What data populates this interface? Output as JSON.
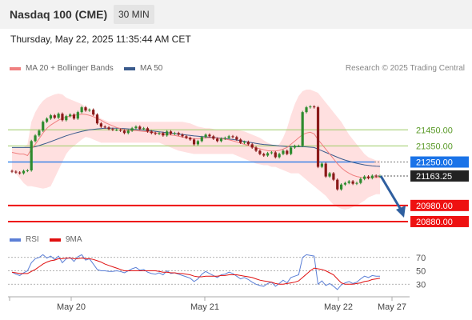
{
  "header": {
    "title": "Nasdaq 100 (CME)",
    "interval": "30 MIN",
    "datetime": "Thursday, May 22, 2025 11:35:44 AM CET"
  },
  "legend": {
    "ma20_label": "MA 20 + Bollinger Bands",
    "ma50_label": "MA 50",
    "rsi_label": "RSI",
    "ma9_label": "9MA",
    "copyright": "Research © 2025 Trading Central"
  },
  "colors": {
    "bullish": "#2e8b2e",
    "bearish": "#8b1a1a",
    "ma20": "#f08080",
    "ma50": "#3a5a8c",
    "band_fill": "#ffd6d6",
    "resistance": "#9ccc65",
    "pivot": "#1a73e8",
    "support": "#ee1111",
    "arrow": "#2f5f9f",
    "rsi": "#5b7fd6",
    "rsi_ma": "#e01010"
  },
  "levels": [
    {
      "value": 21450.0,
      "label": "21450.00",
      "type": "resistance"
    },
    {
      "value": 21350.0,
      "label": "21350.00",
      "type": "resistance"
    },
    {
      "value": 21250.0,
      "label": "21250.00",
      "type": "pivot"
    },
    {
      "value": 21163.25,
      "label": "21163.25",
      "type": "last"
    },
    {
      "value": 20980.0,
      "label": "20980.00",
      "type": "support"
    },
    {
      "value": 20880.0,
      "label": "20880.00",
      "type": "support"
    }
  ],
  "rsi_axis": {
    "ticks": [
      70,
      50,
      30
    ]
  },
  "x_axis": {
    "labels": [
      "May 20",
      "May 21",
      "May 22",
      "May 27"
    ]
  },
  "chart_data": [
    {
      "type": "candlestick",
      "title": "",
      "ylim": [
        20840,
        21700
      ],
      "overlays": [
        "MA 20 + Bollinger Bands",
        "MA 50"
      ],
      "close": [
        21190,
        21185,
        21180,
        21195,
        21198,
        21380,
        21415,
        21445,
        21500,
        21520,
        21540,
        21525,
        21550,
        21510,
        21535,
        21545,
        21520,
        21560,
        21590,
        21570,
        21575,
        21545,
        21490,
        21470,
        21465,
        21455,
        21450,
        21450,
        21445,
        21430,
        21445,
        21460,
        21470,
        21455,
        21460,
        21440,
        21430,
        21425,
        21430,
        21415,
        21440,
        21425,
        21430,
        21420,
        21410,
        21400,
        21390,
        21360,
        21380,
        21405,
        21420,
        21410,
        21395,
        21380,
        21395,
        21400,
        21410,
        21405,
        21390,
        21370,
        21375,
        21360,
        21340,
        21320,
        21300,
        21290,
        21305,
        21310,
        21280,
        21300,
        21320,
        21300,
        21340,
        21350,
        21350,
        21560,
        21590,
        21595,
        21590,
        21220,
        21240,
        21160,
        21180,
        21140,
        21080,
        21110,
        21120,
        21130,
        21115,
        21120,
        21145,
        21160,
        21150,
        21165,
        21160,
        21163
      ],
      "ma20": [
        21310,
        21305,
        21300,
        21300,
        21290,
        21330,
        21360,
        21395,
        21430,
        21460,
        21480,
        21495,
        21510,
        21520,
        21530,
        21535,
        21540,
        21545,
        21548,
        21546,
        21540,
        21532,
        21520,
        21510,
        21495,
        21485,
        21475,
        21465,
        21458,
        21450,
        21445,
        21445,
        21445,
        21443,
        21440,
        21438,
        21435,
        21432,
        21428,
        21424,
        21422,
        21418,
        21415,
        21410,
        21405,
        21400,
        21398,
        21395,
        21395,
        21398,
        21400,
        21400,
        21400,
        21398,
        21396,
        21392,
        21388,
        21382,
        21375,
        21368,
        21360,
        21352,
        21345,
        21338,
        21332,
        21326,
        21320,
        21318,
        21318,
        21322,
        21330,
        21340,
        21360,
        21380,
        21400,
        21420,
        21430,
        21435,
        21425,
        21390,
        21360,
        21330,
        21300,
        21270,
        21240,
        21215,
        21195,
        21180,
        21168,
        21160,
        21155,
        21152,
        21152,
        21153,
        21154,
        21155
      ],
      "ma50": [
        21340,
        21340,
        21340,
        21340,
        21340,
        21340,
        21345,
        21352,
        21360,
        21368,
        21377,
        21386,
        21395,
        21404,
        21413,
        21420,
        21428,
        21434,
        21440,
        21445,
        21450,
        21453,
        21456,
        21458,
        21460,
        21460,
        21460,
        21460,
        21459,
        21458,
        21456,
        21454,
        21452,
        21450,
        21448,
        21446,
        21444,
        21441,
        21438,
        21435,
        21432,
        21430,
        21427,
        21424,
        21421,
        21418,
        21415,
        21412,
        21410,
        21408,
        21406,
        21404,
        21402,
        21400,
        21398,
        21396,
        21393,
        21390,
        21387,
        21383,
        21378,
        21374,
        21370,
        21366,
        21362,
        21359,
        21357,
        21355,
        21353,
        21350,
        21348,
        21346,
        21345,
        21345,
        21345,
        21345,
        21344,
        21342,
        21340,
        21330,
        21320,
        21310,
        21300,
        21290,
        21280,
        21270,
        21262,
        21255,
        21248,
        21242,
        21237,
        21232,
        21229,
        21226,
        21224,
        21223
      ],
      "band_upper": [
        21340,
        21340,
        21340,
        21340,
        21360,
        21500,
        21560,
        21600,
        21630,
        21650,
        21660,
        21670,
        21675,
        21670,
        21650,
        21640,
        21630,
        21620,
        21610,
        21590,
        21580,
        21560,
        21540,
        21520,
        21510,
        21500,
        21500,
        21500,
        21500,
        21500,
        21500,
        21500,
        21500,
        21500,
        21500,
        21500,
        21500,
        21500,
        21500,
        21500,
        21500,
        21500,
        21500,
        21500,
        21500,
        21495,
        21490,
        21480,
        21470,
        21465,
        21460,
        21460,
        21455,
        21450,
        21450,
        21450,
        21450,
        21450,
        21450,
        21445,
        21440,
        21430,
        21420,
        21410,
        21400,
        21385,
        21370,
        21360,
        21350,
        21360,
        21400,
        21460,
        21540,
        21610,
        21660,
        21690,
        21700,
        21700,
        21690,
        21680,
        21650,
        21620,
        21590,
        21560,
        21530,
        21500,
        21460,
        21420,
        21390,
        21360,
        21330,
        21300,
        21280,
        21270,
        21260,
        21260
      ],
      "band_lower": [
        21200,
        21180,
        21150,
        21120,
        21100,
        21100,
        21095,
        21090,
        21085,
        21090,
        21100,
        21150,
        21200,
        21250,
        21300,
        21330,
        21350,
        21370,
        21390,
        21405,
        21400,
        21390,
        21380,
        21370,
        21370,
        21370,
        21370,
        21370,
        21370,
        21370,
        21370,
        21370,
        21370,
        21370,
        21370,
        21370,
        21370,
        21370,
        21370,
        21360,
        21350,
        21340,
        21330,
        21320,
        21315,
        21310,
        21305,
        21300,
        21300,
        21300,
        21300,
        21300,
        21300,
        21300,
        21300,
        21300,
        21300,
        21300,
        21290,
        21280,
        21270,
        21260,
        21250,
        21240,
        21235,
        21230,
        21230,
        21220,
        21220,
        21210,
        21200,
        21190,
        21180,
        21180,
        21180,
        21160,
        21140,
        21120,
        21100,
        21080,
        21060,
        21040,
        21010,
        20985,
        20970,
        20960,
        20955,
        20960,
        20970,
        20980,
        20995,
        21010,
        21030,
        21040,
        21050,
        21050
      ]
    },
    {
      "type": "line",
      "title": "",
      "ylim": [
        10,
        90
      ],
      "series": [
        {
          "name": "RSI",
          "values": [
            48,
            45,
            43,
            47,
            50,
            62,
            68,
            70,
            74,
            69,
            72,
            67,
            72,
            62,
            68,
            70,
            64,
            71,
            74,
            66,
            68,
            60,
            52,
            50,
            50,
            49,
            49,
            50,
            49,
            47,
            50,
            53,
            55,
            51,
            52,
            48,
            46,
            45,
            47,
            44,
            50,
            46,
            47,
            45,
            43,
            41,
            39,
            34,
            38,
            45,
            49,
            46,
            43,
            40,
            44,
            45,
            48,
            46,
            42,
            38,
            40,
            37,
            33,
            30,
            28,
            27,
            31,
            33,
            27,
            31,
            36,
            32,
            40,
            42,
            44,
            70,
            74,
            73,
            72,
            30,
            35,
            28,
            31,
            27,
            22,
            29,
            32,
            34,
            31,
            33,
            38,
            42,
            40,
            43,
            42,
            42
          ]
        },
        {
          "name": "9MA",
          "values": [
            48,
            47,
            46,
            46,
            46,
            49,
            52,
            56,
            60,
            63,
            65,
            66,
            68,
            68,
            69,
            69,
            68,
            68,
            69,
            68,
            68,
            67,
            65,
            63,
            60,
            58,
            56,
            54,
            52,
            50,
            50,
            50,
            50,
            50,
            50,
            50,
            50,
            50,
            49,
            48,
            48,
            47,
            47,
            46,
            46,
            45,
            44,
            42,
            41,
            41,
            42,
            42,
            42,
            42,
            43,
            43,
            44,
            44,
            44,
            43,
            42,
            41,
            40,
            38,
            36,
            35,
            34,
            33,
            31,
            30,
            30,
            31,
            32,
            33,
            35,
            40,
            45,
            50,
            54,
            53,
            52,
            50,
            47,
            44,
            38,
            32,
            30,
            30,
            30,
            31,
            32,
            34,
            35,
            37,
            38,
            39
          ]
        }
      ]
    }
  ]
}
